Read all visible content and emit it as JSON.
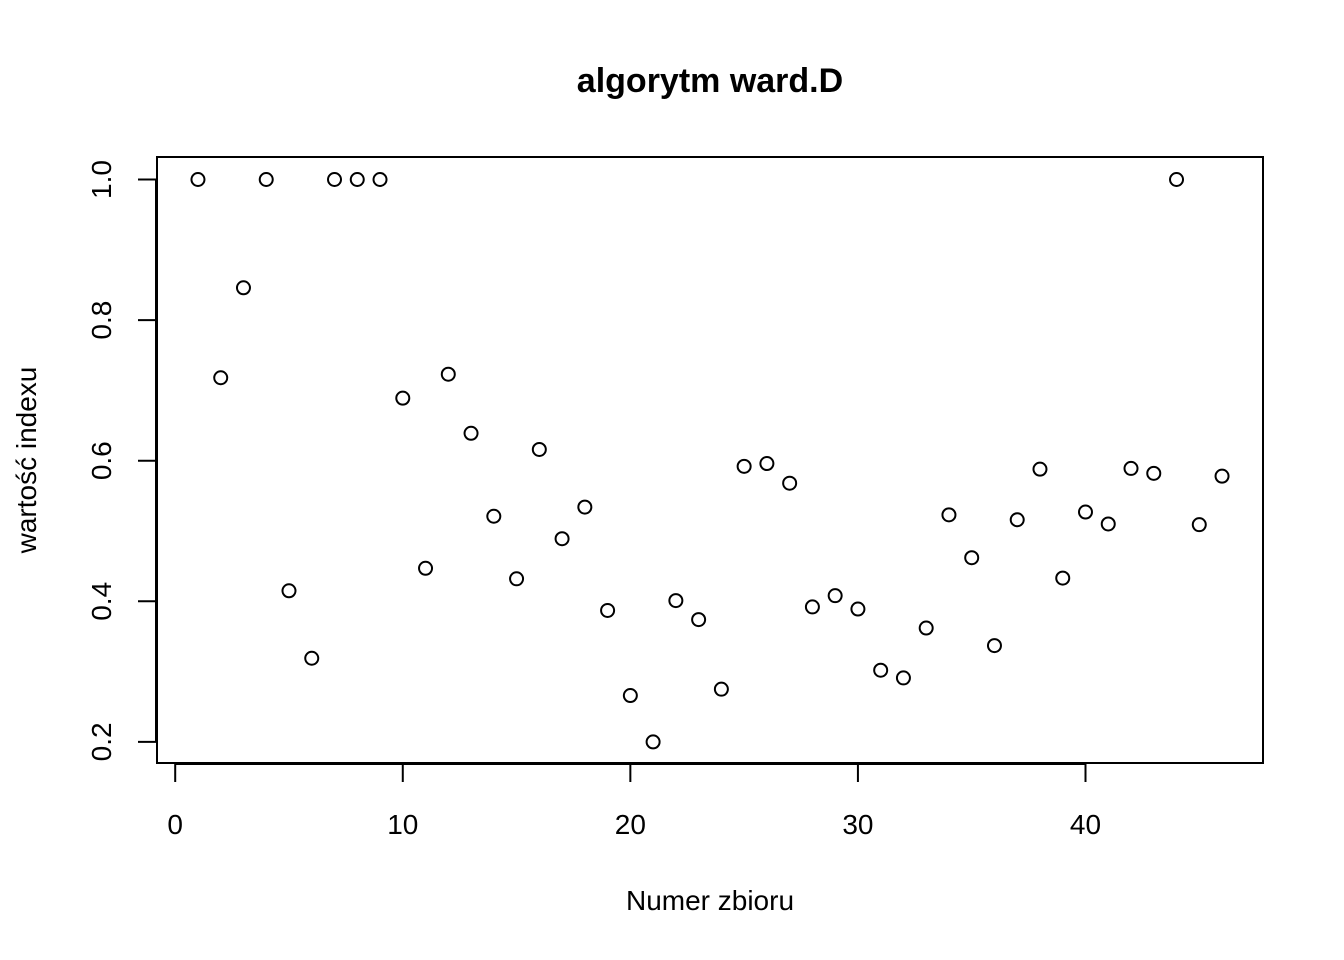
{
  "chart_data": {
    "type": "scatter",
    "title": "algorytm ward.D",
    "xlabel": "Numer zbioru",
    "ylabel": "wartość indexu",
    "xlim": [
      -0.8,
      47.8
    ],
    "ylim": [
      0.17,
      1.032
    ],
    "x_ticks": [
      0,
      10,
      20,
      30,
      40
    ],
    "y_ticks": [
      0.2,
      0.4,
      0.6,
      0.8,
      1.0
    ],
    "x_tick_labels": [
      "0",
      "10",
      "20",
      "30",
      "40"
    ],
    "y_tick_labels": [
      "0.2",
      "0.4",
      "0.6",
      "0.8",
      "1.0"
    ],
    "marker": "open-circle",
    "grid": false,
    "x": [
      1,
      2,
      3,
      4,
      5,
      6,
      7,
      8,
      9,
      10,
      11,
      12,
      13,
      14,
      15,
      16,
      17,
      18,
      19,
      20,
      21,
      22,
      23,
      24,
      25,
      26,
      27,
      28,
      29,
      30,
      31,
      32,
      33,
      34,
      35,
      36,
      37,
      38,
      39,
      40,
      41,
      42,
      43,
      44,
      45,
      46
    ],
    "y": [
      1.0,
      0.718,
      0.846,
      1.0,
      0.415,
      0.319,
      1.0,
      1.0,
      1.0,
      0.689,
      0.447,
      0.723,
      0.639,
      0.521,
      0.432,
      0.616,
      0.489,
      0.534,
      0.387,
      0.266,
      0.2,
      0.401,
      0.374,
      0.275,
      0.592,
      0.596,
      0.568,
      0.392,
      0.408,
      0.389,
      0.302,
      0.291,
      0.362,
      0.523,
      0.462,
      0.337,
      0.516,
      0.588,
      0.433,
      0.527,
      0.51,
      0.589,
      0.582,
      1.0,
      0.509,
      0.578
    ]
  }
}
